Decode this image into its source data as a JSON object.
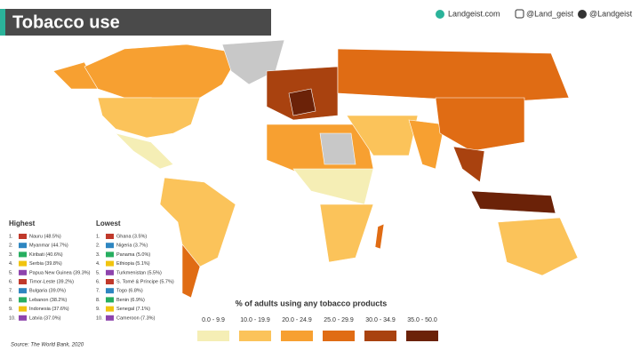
{
  "header": {
    "title": "Tobacco use",
    "site": "Landgeist.com",
    "instagram": "@Land_geist",
    "twitter": "@Landgeist"
  },
  "highest": {
    "heading": "Highest",
    "items": [
      {
        "rank": "1.",
        "label": "Nauru (48.5%)"
      },
      {
        "rank": "2.",
        "label": "Myanmar (44.7%)"
      },
      {
        "rank": "3.",
        "label": "Kiribati (40.6%)"
      },
      {
        "rank": "4.",
        "label": "Serbia (39.8%)"
      },
      {
        "rank": "5.",
        "label": "Papua New Guinea (39.3%)"
      },
      {
        "rank": "6.",
        "label": "Timor-Leste (39.2%)"
      },
      {
        "rank": "7.",
        "label": "Bulgaria (39.0%)"
      },
      {
        "rank": "8.",
        "label": "Lebanon (38.2%)"
      },
      {
        "rank": "9.",
        "label": "Indonesia (37.6%)"
      },
      {
        "rank": "10.",
        "label": "Latvia (37.0%)"
      }
    ]
  },
  "lowest": {
    "heading": "Lowest",
    "items": [
      {
        "rank": "1.",
        "label": "Ghana (3.5%)"
      },
      {
        "rank": "2.",
        "label": "Nigeria (3.7%)"
      },
      {
        "rank": "3.",
        "label": "Panama (5.0%)"
      },
      {
        "rank": "4.",
        "label": "Ethiopia (5.1%)"
      },
      {
        "rank": "5.",
        "label": "Turkmenistan (5.5%)"
      },
      {
        "rank": "6.",
        "label": "S. Tomé & Príncipe (5.7%)"
      },
      {
        "rank": "7.",
        "label": "Togo (6.8%)"
      },
      {
        "rank": "8.",
        "label": "Benin (6.9%)"
      },
      {
        "rank": "9.",
        "label": "Senegal (7.1%)"
      },
      {
        "rank": "10.",
        "label": "Cameroon (7.3%)"
      }
    ]
  },
  "legend": {
    "title": "% of adults using any tobacco products",
    "items": [
      {
        "label": "0.0 - 9.9",
        "color": "#f5eeb5"
      },
      {
        "label": "10.0 - 19.9",
        "color": "#fbc35a"
      },
      {
        "label": "20.0 - 24.9",
        "color": "#f7a031"
      },
      {
        "label": "25.0 - 29.9",
        "color": "#e06c14"
      },
      {
        "label": "30.0 - 34.9",
        "color": "#a9420f"
      },
      {
        "label": "35.0 - 50.0",
        "color": "#6b2208"
      }
    ]
  },
  "source": "Source: The World Bank, 2020"
}
